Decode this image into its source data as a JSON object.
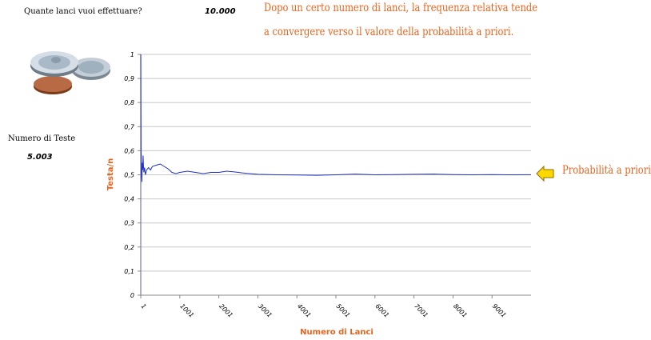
{
  "inputs": {
    "question_label": "Quante lanci vuoi effettuare?",
    "question_value": "10.000",
    "heads_label": "Numero di Teste",
    "heads_value": "5.003"
  },
  "headline": {
    "line1": "Dopo un certo numero di lanci, la frequenza relativa tende",
    "line2": "a convergere verso il valore della probabilità a priori."
  },
  "annotation": {
    "prior_label": "Probabilità a priori",
    "arrow_icon": "left-arrow-icon",
    "arrow_color": "#ffd800"
  },
  "icons": {
    "coins": "coins-icon"
  },
  "colors": {
    "accent": "#e8641e",
    "series": "#1f2fc8",
    "grid": "#c8c8c8"
  },
  "chart_data": {
    "type": "line",
    "title": "",
    "xlabel": "Numero di Lanci",
    "ylabel": "Testa/n",
    "ylim": [
      0,
      1
    ],
    "yticks": [
      0,
      0.1,
      0.2,
      0.3,
      0.4,
      0.5,
      0.6,
      0.7,
      0.8,
      0.9,
      1
    ],
    "ytick_labels": [
      "0",
      "0,1",
      "0,2",
      "0,3",
      "0,4",
      "0,5",
      "0,6",
      "0,7",
      "0,8",
      "0,9",
      "1"
    ],
    "xlim": [
      1,
      10000
    ],
    "xticks": [
      1,
      1001,
      2001,
      3001,
      4001,
      5001,
      6001,
      7001,
      8001,
      9001
    ],
    "xtick_labels": [
      "1",
      "1001",
      "2001",
      "3001",
      "4001",
      "5001",
      "6001",
      "7001",
      "8001",
      "9001"
    ],
    "grid": true,
    "series": [
      {
        "x": [
          1,
          10,
          20,
          30,
          40,
          50,
          60,
          70,
          80,
          100,
          120,
          150,
          200,
          250,
          300,
          400,
          500,
          600,
          700,
          800,
          900,
          1000,
          1200,
          1400,
          1600,
          1800,
          2000,
          2200,
          2400,
          2600,
          2800,
          3000,
          3500,
          4000,
          4500,
          5000,
          5500,
          6000,
          6500,
          7000,
          7500,
          8000,
          8500,
          9000,
          9500,
          10000
        ],
        "values": [
          1.0,
          0.6,
          0.5,
          0.47,
          0.55,
          0.52,
          0.58,
          0.54,
          0.51,
          0.53,
          0.5,
          0.52,
          0.53,
          0.52,
          0.535,
          0.54,
          0.545,
          0.535,
          0.525,
          0.51,
          0.505,
          0.51,
          0.515,
          0.51,
          0.505,
          0.51,
          0.51,
          0.515,
          0.512,
          0.508,
          0.505,
          0.502,
          0.5,
          0.499,
          0.498,
          0.5,
          0.503,
          0.5,
          0.501,
          0.502,
          0.503,
          0.501,
          0.5,
          0.501,
          0.5,
          0.5003
        ]
      }
    ]
  }
}
